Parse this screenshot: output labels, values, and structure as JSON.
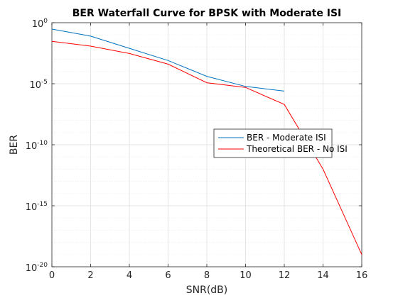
{
  "chart_data": {
    "type": "line",
    "title": "BER Waterfall Curve for BPSK with Moderate ISI",
    "xlabel": "SNR(dB)",
    "ylabel": "BER",
    "xlim": [
      0,
      16
    ],
    "ylim": [
      1e-20,
      1
    ],
    "yscale": "log",
    "grid": true,
    "x_ticks": [
      "0",
      "2",
      "4",
      "6",
      "8",
      "10",
      "12",
      "14",
      "16"
    ],
    "y_ticks": [
      {
        "base": "10",
        "exp": "0"
      },
      {
        "base": "10",
        "exp": "-5"
      },
      {
        "base": "10",
        "exp": "-10"
      },
      {
        "base": "10",
        "exp": "-15"
      },
      {
        "base": "10",
        "exp": "-20"
      }
    ],
    "legend_position": "right",
    "series": [
      {
        "name": "BER - Moderate ISI",
        "color": "#0072BD",
        "x": [
          0,
          2,
          4,
          6,
          8,
          10,
          12
        ],
        "y": [
          0.3,
          0.08,
          0.008,
          0.0008,
          4e-05,
          6e-06,
          2.5e-06
        ]
      },
      {
        "name": "Theoretical BER - No ISI",
        "color": "#FF0000",
        "x": [
          0,
          2,
          4,
          6,
          8,
          10,
          12,
          14,
          16
        ],
        "y": [
          0.03,
          0.012,
          0.003,
          0.0004,
          1.2e-05,
          5e-06,
          2e-07,
          1e-12,
          1e-19
        ]
      }
    ]
  }
}
